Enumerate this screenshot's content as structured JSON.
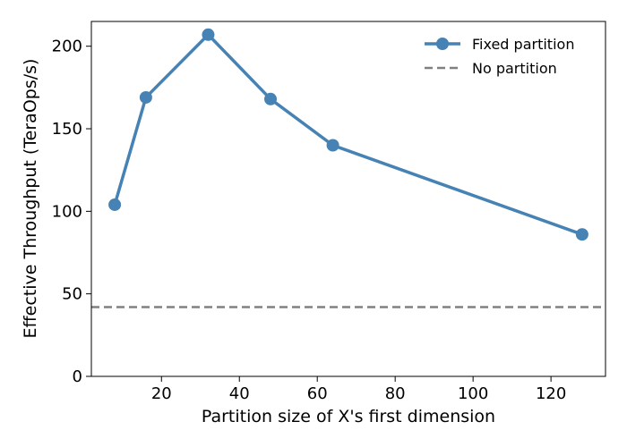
{
  "chart_data": {
    "type": "line",
    "title": "",
    "xlabel": "Partition size of X's first dimension",
    "ylabel": "Effective Throughput (TeraOps/s)",
    "xlim": [
      2,
      134
    ],
    "ylim": [
      0,
      215
    ],
    "xticks": [
      20,
      40,
      60,
      80,
      100,
      120
    ],
    "yticks": [
      0,
      50,
      100,
      150,
      200
    ],
    "grid": false,
    "legend_position": "top-right",
    "series": [
      {
        "name": "Fixed partition",
        "style": "solid-with-markers",
        "color": "#4682b4",
        "x": [
          8,
          16,
          32,
          48,
          64,
          128
        ],
        "y": [
          104,
          169,
          207,
          168,
          140,
          86
        ]
      },
      {
        "name": "No partition",
        "style": "dashed",
        "color": "#808080",
        "y_constant": 42
      }
    ]
  }
}
